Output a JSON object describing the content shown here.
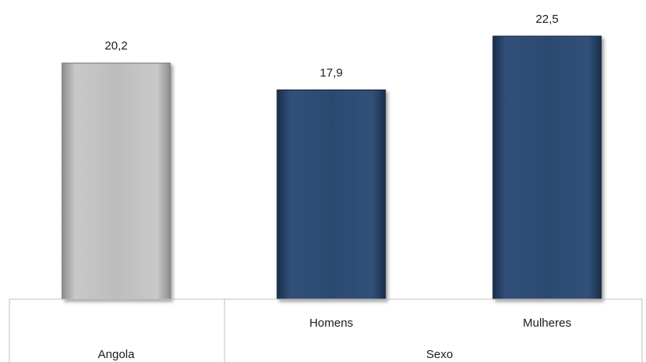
{
  "chart_data": {
    "type": "bar",
    "categories": [
      "Angola",
      "Homens",
      "Mulheres"
    ],
    "values": [
      20.2,
      17.9,
      22.5
    ],
    "value_labels": [
      "20,2",
      "17,9",
      "22,5"
    ],
    "groups": [
      {
        "label": "Angola",
        "members": [
          0
        ],
        "sub_labels": [
          ""
        ]
      },
      {
        "label": "Sexo",
        "members": [
          1,
          2
        ],
        "sub_labels": [
          "Homens",
          "Mulheres"
        ]
      }
    ],
    "bar_colors": [
      "#b3b3b3",
      "#2e4a6e",
      "#2e4a6e"
    ],
    "title": "",
    "xlabel": "",
    "ylabel": "",
    "ylim": [
      0,
      22.5
    ],
    "grid": false,
    "legend": "none"
  }
}
